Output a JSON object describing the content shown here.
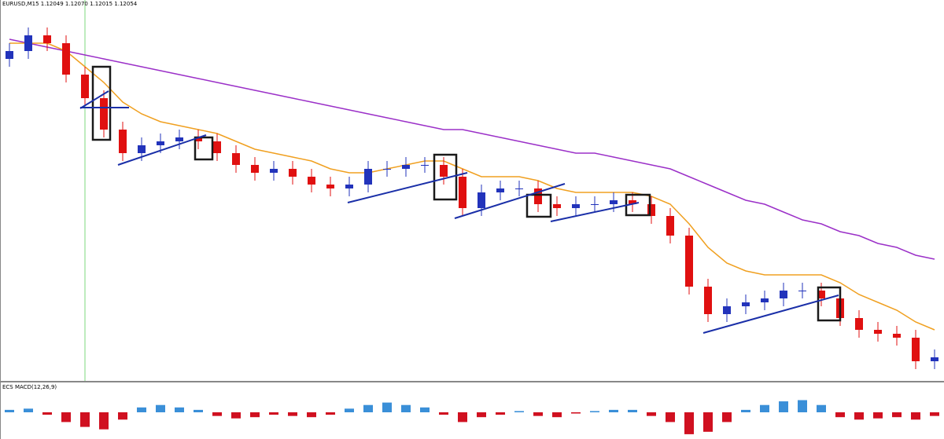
{
  "chart_data": [
    {
      "type": "candlestick",
      "title": "EURUSD,M15  1.12049 1.12070 1.12015 1.12054",
      "ylim": [
        1.112,
        1.1215
      ],
      "up_color": "#2233bb",
      "down_color": "#e01010",
      "open": [
        1.1202,
        1.1204,
        1.1208,
        1.1206,
        1.1198,
        1.1192,
        1.1184,
        1.1178,
        1.118,
        1.1181,
        1.1182,
        1.1181,
        1.1178,
        1.1175,
        1.1173,
        1.1174,
        1.1172,
        1.117,
        1.1169,
        1.117,
        1.1174,
        1.1174,
        1.1175,
        1.1175,
        1.1172,
        1.1164,
        1.1168,
        1.1169,
        1.1169,
        1.1165,
        1.1164,
        1.1165,
        1.1165,
        1.1166,
        1.1165,
        1.1162,
        1.1157,
        1.1144,
        1.1137,
        1.1139,
        1.114,
        1.1141,
        1.1143,
        1.1143,
        1.1141,
        1.1136,
        1.1133,
        1.1132,
        1.1131,
        1.1125
      ],
      "high": [
        1.1206,
        1.121,
        1.121,
        1.1208,
        1.12,
        1.1194,
        1.1186,
        1.1182,
        1.1183,
        1.1184,
        1.1184,
        1.1183,
        1.118,
        1.1177,
        1.1176,
        1.1176,
        1.1174,
        1.1172,
        1.1172,
        1.1176,
        1.1176,
        1.1177,
        1.1177,
        1.1177,
        1.1174,
        1.117,
        1.1171,
        1.1171,
        1.1171,
        1.1167,
        1.1167,
        1.1167,
        1.1168,
        1.1168,
        1.1167,
        1.1164,
        1.1159,
        1.1146,
        1.1141,
        1.1142,
        1.1143,
        1.1145,
        1.1145,
        1.1145,
        1.1143,
        1.1138,
        1.1135,
        1.1134,
        1.1133,
        1.1128
      ],
      "low": [
        1.12,
        1.1202,
        1.1204,
        1.1196,
        1.119,
        1.1182,
        1.1176,
        1.1176,
        1.1178,
        1.1179,
        1.1179,
        1.1176,
        1.1173,
        1.1171,
        1.1171,
        1.117,
        1.1168,
        1.1167,
        1.1167,
        1.1168,
        1.1172,
        1.1172,
        1.1173,
        1.117,
        1.1162,
        1.1162,
        1.1166,
        1.1167,
        1.1163,
        1.1162,
        1.1162,
        1.1163,
        1.1163,
        1.1163,
        1.116,
        1.1155,
        1.1142,
        1.1135,
        1.1135,
        1.1137,
        1.1138,
        1.1139,
        1.1141,
        1.1139,
        1.1134,
        1.1131,
        1.113,
        1.1129,
        1.1123,
        1.1123
      ],
      "close": [
        1.1204,
        1.1208,
        1.1206,
        1.1198,
        1.1192,
        1.1184,
        1.1178,
        1.118,
        1.1181,
        1.1182,
        1.1181,
        1.1178,
        1.1175,
        1.1173,
        1.1174,
        1.1172,
        1.117,
        1.1169,
        1.117,
        1.1174,
        1.1174,
        1.1175,
        1.1175,
        1.1172,
        1.1164,
        1.1168,
        1.1169,
        1.1169,
        1.1165,
        1.1164,
        1.1165,
        1.1165,
        1.1166,
        1.1165,
        1.1162,
        1.1157,
        1.1144,
        1.1137,
        1.1139,
        1.114,
        1.1141,
        1.1143,
        1.1143,
        1.1141,
        1.1136,
        1.1133,
        1.1132,
        1.1131,
        1.1125,
        1.1126
      ],
      "series": [
        {
          "color": "#9b30c8",
          "values": [
            1.1207,
            1.1206,
            1.1205,
            1.1204,
            1.1203,
            1.1202,
            1.1201,
            1.12,
            1.1199,
            1.1198,
            1.1197,
            1.1196,
            1.1195,
            1.1194,
            1.1193,
            1.1192,
            1.1191,
            1.119,
            1.1189,
            1.1188,
            1.1187,
            1.1186,
            1.1185,
            1.1184,
            1.1184,
            1.1183,
            1.1182,
            1.1181,
            1.118,
            1.1179,
            1.1178,
            1.1178,
            1.1177,
            1.1176,
            1.1175,
            1.1174,
            1.1172,
            1.117,
            1.1168,
            1.1166,
            1.1165,
            1.1163,
            1.1161,
            1.116,
            1.1158,
            1.1157,
            1.1155,
            1.1154,
            1.1152,
            1.1151
          ]
        },
        {
          "color": "#f0a020",
          "values": [
            1.1206,
            1.1206,
            1.1206,
            1.1204,
            1.12,
            1.1196,
            1.1191,
            1.1188,
            1.1186,
            1.1185,
            1.1184,
            1.1183,
            1.1181,
            1.1179,
            1.1178,
            1.1177,
            1.1176,
            1.1174,
            1.1173,
            1.1173,
            1.1174,
            1.1175,
            1.1176,
            1.1176,
            1.1174,
            1.1172,
            1.1172,
            1.1172,
            1.1171,
            1.1169,
            1.1168,
            1.1168,
            1.1168,
            1.1168,
            1.1167,
            1.1165,
            1.116,
            1.1154,
            1.115,
            1.1148,
            1.1147,
            1.1147,
            1.1147,
            1.1147,
            1.1145,
            1.1142,
            1.114,
            1.1138,
            1.1135,
            1.1133
          ]
        }
      ]
    },
    {
      "type": "bar",
      "title": "ECS MACD(12,26,9)",
      "ylim": [
        -0.0002,
        0.0002
      ],
      "up_color": "#3a8fd8",
      "down_color": "#d01020",
      "values": [
        2e-05,
        3e-05,
        -2e-05,
        -8e-05,
        -0.00012,
        -0.00014,
        -6e-05,
        4e-05,
        6e-05,
        4e-05,
        2e-05,
        -3e-05,
        -5e-05,
        -4e-05,
        -2e-05,
        -3e-05,
        -4e-05,
        -2e-05,
        3e-05,
        6e-05,
        8e-05,
        6e-05,
        4e-05,
        -2e-05,
        -8e-05,
        -4e-05,
        -2e-05,
        1e-05,
        -3e-05,
        -4e-05,
        -1e-05,
        1e-05,
        2e-05,
        2e-05,
        -3e-05,
        -8e-05,
        -0.00018,
        -0.00016,
        -8e-05,
        2e-05,
        6e-05,
        9e-05,
        0.0001,
        6e-05,
        -4e-05,
        -6e-05,
        -5e-05,
        -4e-05,
        -6e-05,
        -3e-05
      ]
    }
  ]
}
